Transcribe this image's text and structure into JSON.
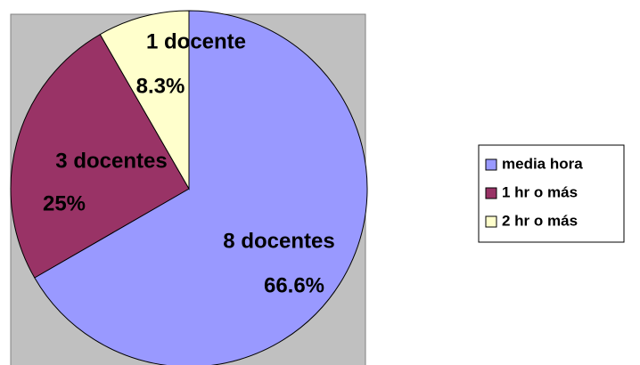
{
  "chart_data": {
    "type": "pie",
    "categories": [
      "media hora",
      "1 hr o más",
      "2 hr o más"
    ],
    "values": [
      66.6,
      25,
      8.3
    ],
    "value_labels": [
      "66.6%",
      "25%",
      "8.3%"
    ],
    "count_labels": [
      "8 docentes",
      "3 docentes",
      "1 docente"
    ],
    "colors": [
      "#9999ff",
      "#993366",
      "#ffffcc"
    ],
    "legend": "right"
  }
}
